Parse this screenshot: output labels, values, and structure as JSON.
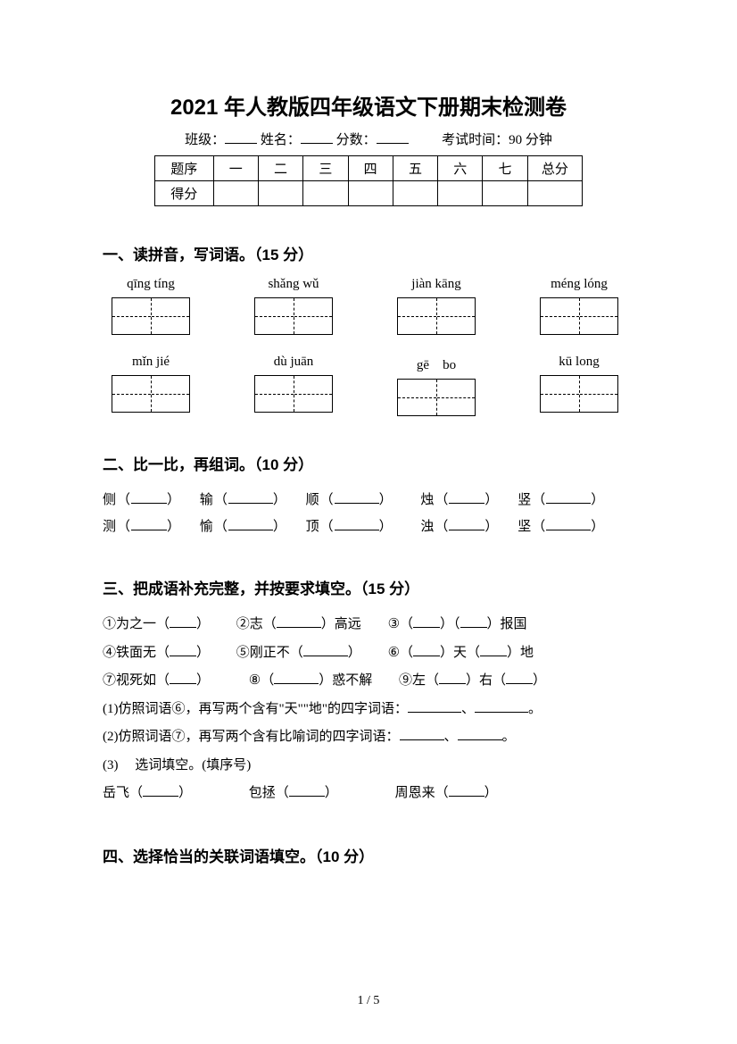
{
  "title": "2021 年人教版四年级语文下册期末检测卷",
  "info": {
    "class_label": "班级：",
    "name_label": "姓名：",
    "score_label": "分数：",
    "time_label": "考试时间：90 分钟"
  },
  "score_table": {
    "row1": [
      "题序",
      "一",
      "二",
      "三",
      "四",
      "五",
      "六",
      "七",
      "总分"
    ],
    "row2_label": "得分"
  },
  "section1": {
    "title": "一、读拼音，写词语。（15 分）",
    "row1": [
      "qīng tíng",
      "shǎng wǔ",
      "jiàn kāng",
      "méng lóng"
    ],
    "row2": [
      "mǐn jié",
      "dù juān",
      "gē　bo",
      "kū long"
    ]
  },
  "section2": {
    "title": "二、比一比，再组词。（10 分）",
    "line1_chars": [
      "侧",
      "输",
      "顺",
      "烛",
      "竖"
    ],
    "line2_chars": [
      "测",
      "愉",
      "顶",
      "浊",
      "坚"
    ]
  },
  "section3": {
    "title": "三、把成语补充完整，并按要求填空。（15 分）",
    "items": {
      "i1_a": "①为之一（",
      "i1_b": "）",
      "i2_a": "②志（",
      "i2_b": "）高远",
      "i3_a": "③（",
      "i3_b": "）（",
      "i3_c": "）报国",
      "i4_a": "④铁面无（",
      "i4_b": "）",
      "i5_a": "⑤刚正不（",
      "i5_b": "）",
      "i6_a": "⑥（",
      "i6_b": "）天（",
      "i6_c": "）地",
      "i7_a": "⑦视死如（",
      "i7_b": "）",
      "i8_a": "⑧（",
      "i8_b": "）惑不解",
      "i9_a": "⑨左（",
      "i9_b": "）右（",
      "i9_c": "）"
    },
    "sub1": "(1)仿照词语⑥，再写两个含有\"天\"\"地\"的四字词语：",
    "sub1_sep": "、",
    "sub1_end": "。",
    "sub2": "(2)仿照词语⑦，再写两个含有比喻词的四字词语：",
    "sub2_sep": "、",
    "sub2_end": "。",
    "sub3": "(3)　 选词填空。(填序号)",
    "sub3_names": [
      "岳飞（",
      "包拯（",
      "周恩来（"
    ],
    "sub3_close": "）"
  },
  "section4": {
    "title": "四、选择恰当的关联词语填空。（10 分）"
  },
  "page_num": "1 / 5"
}
